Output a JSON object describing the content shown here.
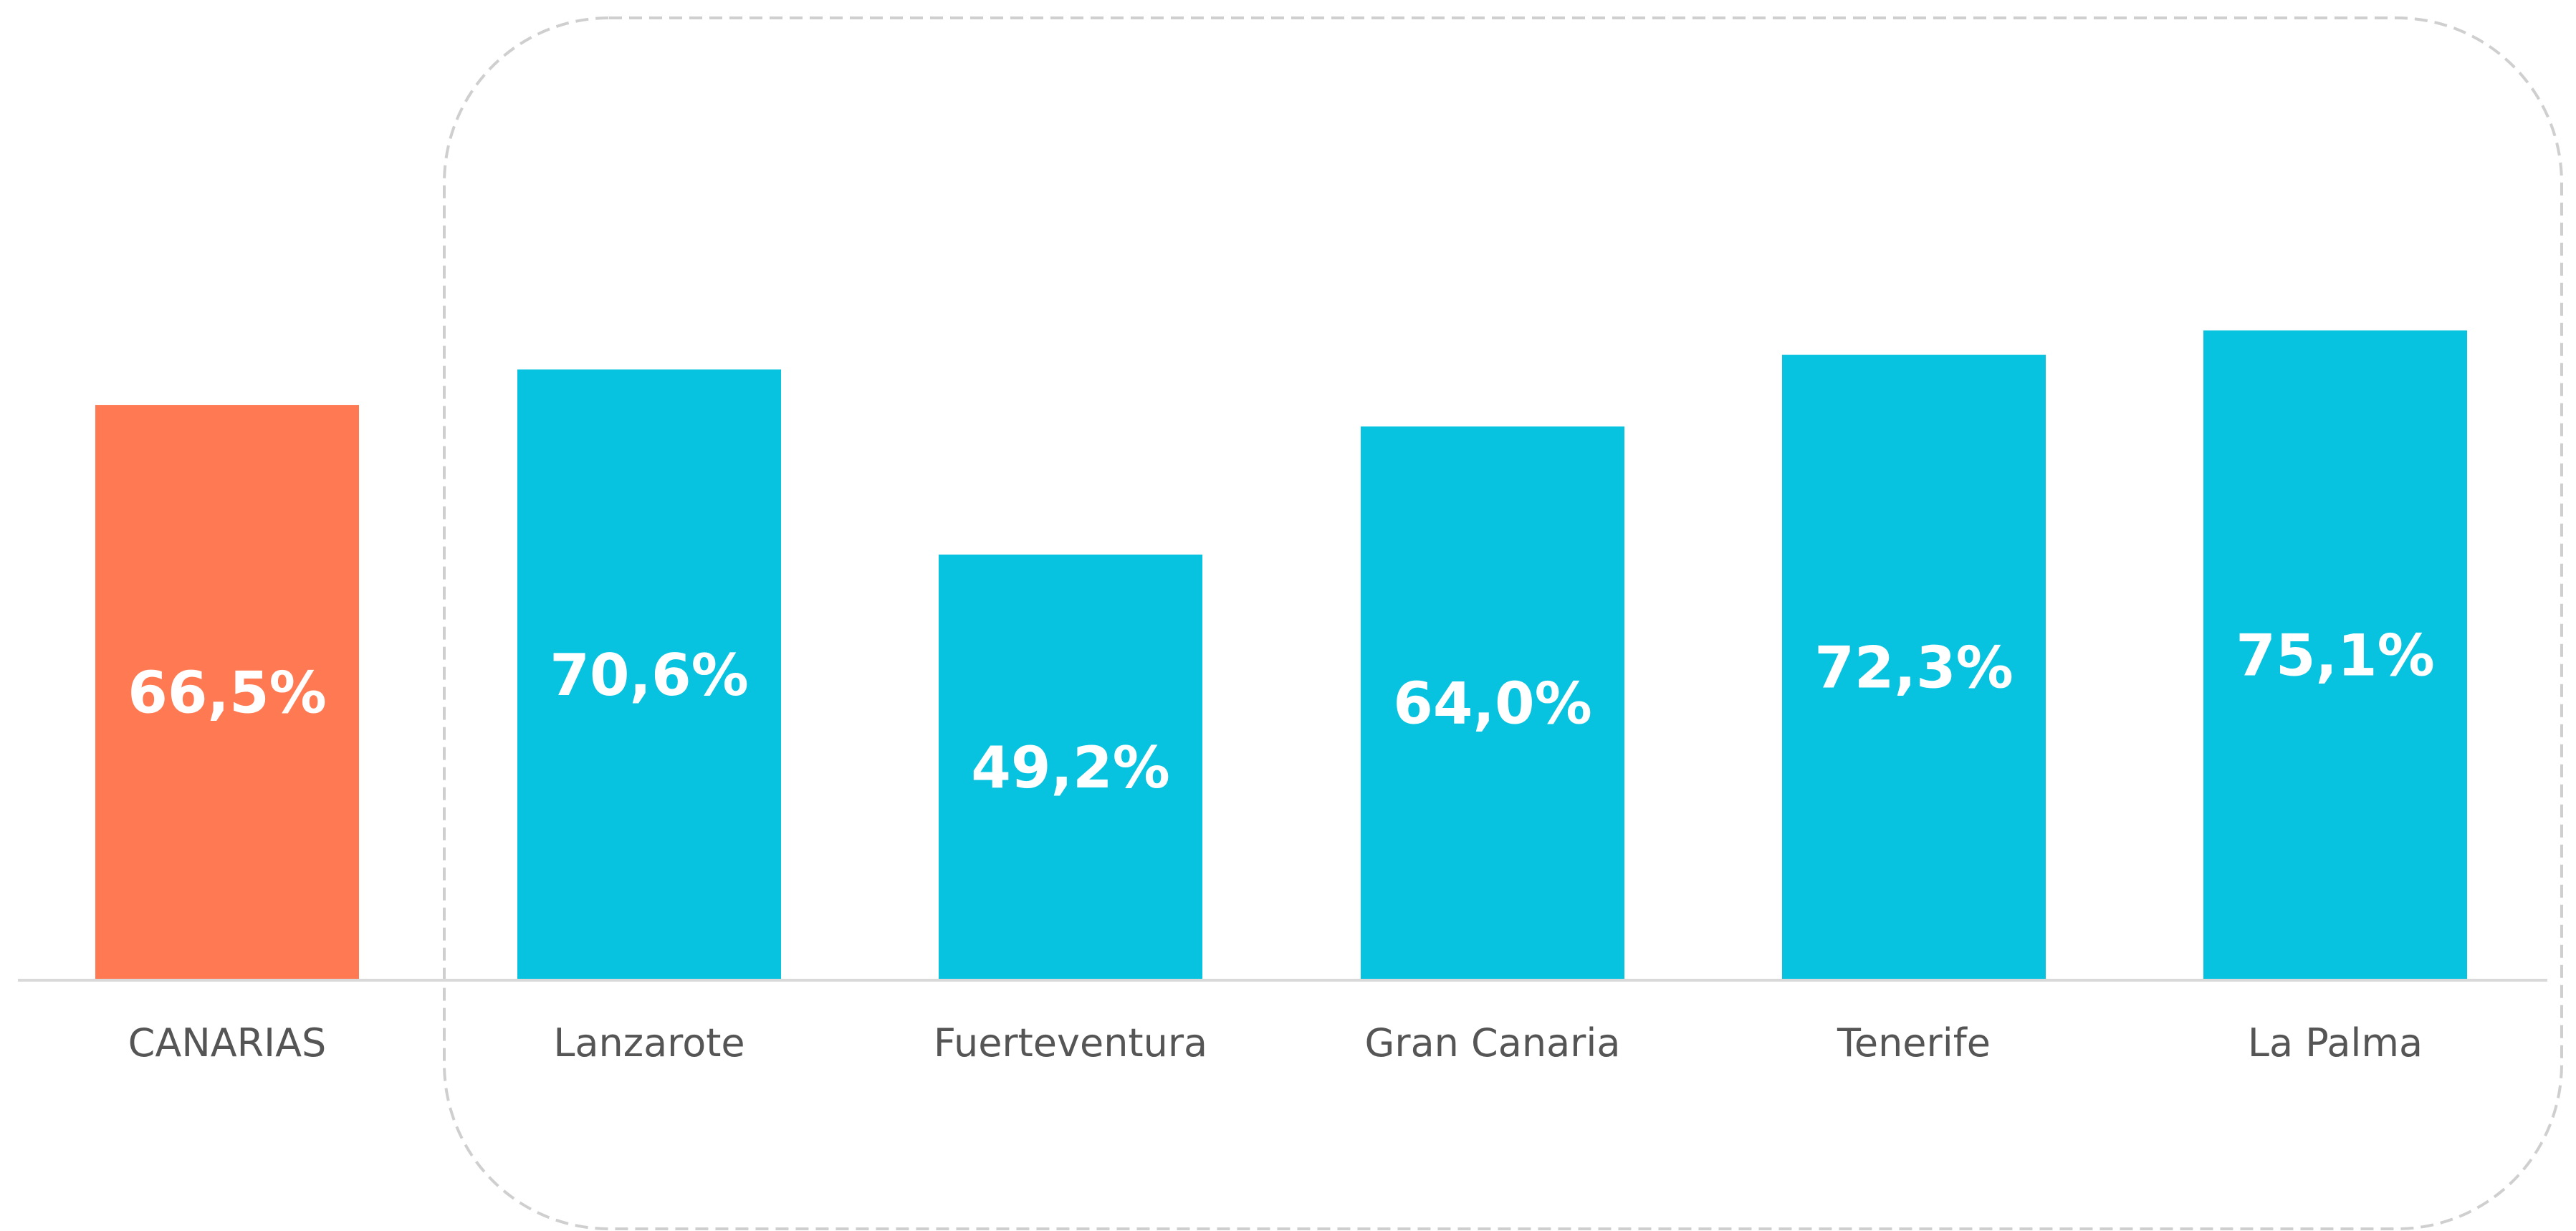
{
  "chart_data": {
    "type": "bar",
    "categories": [
      "CANARIAS",
      "Lanzarote",
      "Fuerteventura",
      "Gran Canaria",
      "Tenerife",
      "La Palma"
    ],
    "values": [
      66.5,
      70.6,
      49.2,
      64.0,
      72.3,
      75.1
    ],
    "data_labels": [
      "66,5%",
      "70,6%",
      "49,2%",
      "64,0%",
      "72,3%",
      "75,1%"
    ],
    "colors": [
      "#FF7A52",
      "#08C3DF",
      "#08C3DF",
      "#08C3DF",
      "#08C3DF",
      "#08C3DF"
    ],
    "title": "",
    "xlabel": "",
    "ylabel": "",
    "ylim": [
      0,
      100
    ],
    "grid": false,
    "legend": "none",
    "group_frame": "dashed rounded box around island bars",
    "baseline_color": "#D9D9D9"
  }
}
